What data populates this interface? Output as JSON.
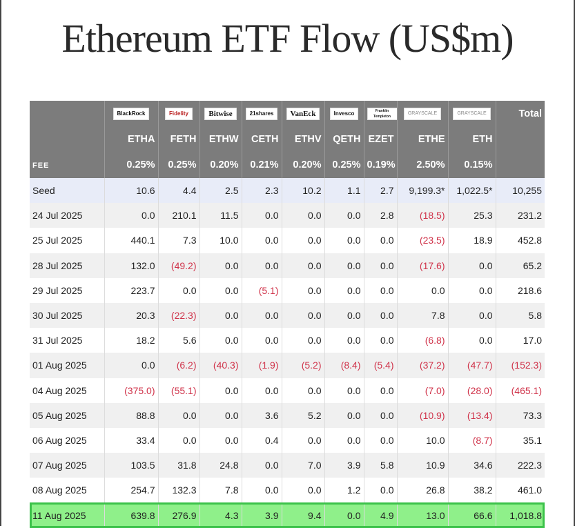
{
  "title": "Ethereum ETF Flow (US$m)",
  "header": {
    "issuers": [
      "BlackRock",
      "Fidelity",
      "Bitwise",
      "21shares",
      "VanEck",
      "Invesco",
      "Franklin Templeton",
      "GRAYSCALE",
      "GRAYSCALE"
    ],
    "total_label": "Total",
    "tickers": [
      "ETHA",
      "FETH",
      "ETHW",
      "CETH",
      "ETHV",
      "QETH",
      "EZET",
      "ETHE",
      "ETH"
    ],
    "fee_label": "FEE",
    "fees": [
      "0.25%",
      "0.25%",
      "0.20%",
      "0.21%",
      "0.20%",
      "0.25%",
      "0.19%",
      "2.50%",
      "0.15%"
    ]
  },
  "rows": [
    {
      "date": "Seed",
      "cells": [
        "10.6",
        "4.4",
        "2.5",
        "2.3",
        "10.2",
        "1.1",
        "2.7",
        "9,199.3*",
        "1,022.5*",
        "10,255"
      ]
    },
    {
      "date": "24 Jul 2025",
      "cells": [
        "0.0",
        "210.1",
        "11.5",
        "0.0",
        "0.0",
        "0.0",
        "2.8",
        "(18.5)",
        "25.3",
        "231.2"
      ]
    },
    {
      "date": "25 Jul 2025",
      "cells": [
        "440.1",
        "7.3",
        "10.0",
        "0.0",
        "0.0",
        "0.0",
        "0.0",
        "(23.5)",
        "18.9",
        "452.8"
      ]
    },
    {
      "date": "28 Jul 2025",
      "cells": [
        "132.0",
        "(49.2)",
        "0.0",
        "0.0",
        "0.0",
        "0.0",
        "0.0",
        "(17.6)",
        "0.0",
        "65.2"
      ]
    },
    {
      "date": "29 Jul 2025",
      "cells": [
        "223.7",
        "0.0",
        "0.0",
        "(5.1)",
        "0.0",
        "0.0",
        "0.0",
        "0.0",
        "0.0",
        "218.6"
      ]
    },
    {
      "date": "30 Jul 2025",
      "cells": [
        "20.3",
        "(22.3)",
        "0.0",
        "0.0",
        "0.0",
        "0.0",
        "0.0",
        "7.8",
        "0.0",
        "5.8"
      ]
    },
    {
      "date": "31 Jul 2025",
      "cells": [
        "18.2",
        "5.6",
        "0.0",
        "0.0",
        "0.0",
        "0.0",
        "0.0",
        "(6.8)",
        "0.0",
        "17.0"
      ]
    },
    {
      "date": "01 Aug 2025",
      "cells": [
        "0.0",
        "(6.2)",
        "(40.3)",
        "(1.9)",
        "(5.2)",
        "(8.4)",
        "(5.4)",
        "(37.2)",
        "(47.7)",
        "(152.3)"
      ]
    },
    {
      "date": "04 Aug 2025",
      "cells": [
        "(375.0)",
        "(55.1)",
        "0.0",
        "0.0",
        "0.0",
        "0.0",
        "0.0",
        "(7.0)",
        "(28.0)",
        "(465.1)"
      ]
    },
    {
      "date": "05 Aug 2025",
      "cells": [
        "88.8",
        "0.0",
        "0.0",
        "3.6",
        "5.2",
        "0.0",
        "0.0",
        "(10.9)",
        "(13.4)",
        "73.3"
      ]
    },
    {
      "date": "06 Aug 2025",
      "cells": [
        "33.4",
        "0.0",
        "0.0",
        "0.4",
        "0.0",
        "0.0",
        "0.0",
        "10.0",
        "(8.7)",
        "35.1"
      ]
    },
    {
      "date": "07 Aug 2025",
      "cells": [
        "103.5",
        "31.8",
        "24.8",
        "0.0",
        "7.0",
        "3.9",
        "5.8",
        "10.9",
        "34.6",
        "222.3"
      ]
    },
    {
      "date": "08 Aug 2025",
      "cells": [
        "254.7",
        "132.3",
        "7.8",
        "0.0",
        "0.0",
        "1.2",
        "0.0",
        "26.8",
        "38.2",
        "461.0"
      ]
    },
    {
      "date": "11 Aug 2025",
      "cells": [
        "639.8",
        "276.9",
        "4.3",
        "3.9",
        "9.4",
        "0.0",
        "4.9",
        "13.0",
        "66.6",
        "1,018.8"
      ],
      "highlight": true
    }
  ],
  "chart_data": {
    "type": "table",
    "title": "Ethereum ETF Flow (US$m)",
    "columns": [
      "ETHA",
      "FETH",
      "ETHW",
      "CETH",
      "ETHV",
      "QETH",
      "EZET",
      "ETHE",
      "ETH",
      "Total"
    ],
    "colors": {
      "header_bg": "#7c7c7c",
      "negative": "#d0334a",
      "highlight_bg": "#8ff08a",
      "highlight_border": "#3cc24a",
      "seed_bg": "#e8ecf8"
    }
  }
}
